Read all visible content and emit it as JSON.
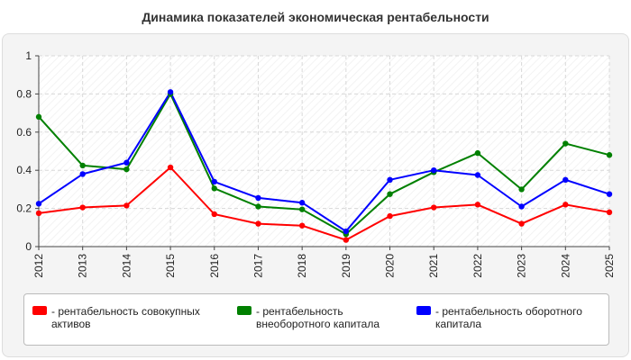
{
  "chart_data": {
    "type": "line",
    "title": "Динамика показателей экономическая рентабельности",
    "xlabel": "",
    "ylabel": "",
    "ylim": [
      0,
      1
    ],
    "y_ticks": [
      "0",
      "0.2",
      "0.4",
      "0.6",
      "0.8",
      "1"
    ],
    "y_tick_values": [
      0,
      0.2,
      0.4,
      0.6,
      0.8,
      1
    ],
    "categories": [
      "2012",
      "2013",
      "2014",
      "2015",
      "2016",
      "2017",
      "2018",
      "2019",
      "2020",
      "2021",
      "2022",
      "2023",
      "2024",
      "2025"
    ],
    "grid": true,
    "legend_position": "bottom",
    "series": [
      {
        "name": "- рентабельность совокупных активов",
        "color": "#ff0000",
        "values": [
          0.175,
          0.205,
          0.215,
          0.415,
          0.17,
          0.12,
          0.11,
          0.035,
          0.16,
          0.205,
          0.22,
          0.12,
          0.22,
          0.18
        ]
      },
      {
        "name": "- рентабельность внеоборотного капитала",
        "color": "#008000",
        "values": [
          0.68,
          0.425,
          0.405,
          0.8,
          0.305,
          0.21,
          0.195,
          0.065,
          0.275,
          0.39,
          0.49,
          0.3,
          0.54,
          0.48
        ]
      },
      {
        "name": "- рентабельность оборотного капитала",
        "color": "#0000ff",
        "values": [
          0.225,
          0.38,
          0.44,
          0.81,
          0.34,
          0.255,
          0.23,
          0.08,
          0.35,
          0.4,
          0.375,
          0.21,
          0.35,
          0.275
        ]
      }
    ]
  }
}
